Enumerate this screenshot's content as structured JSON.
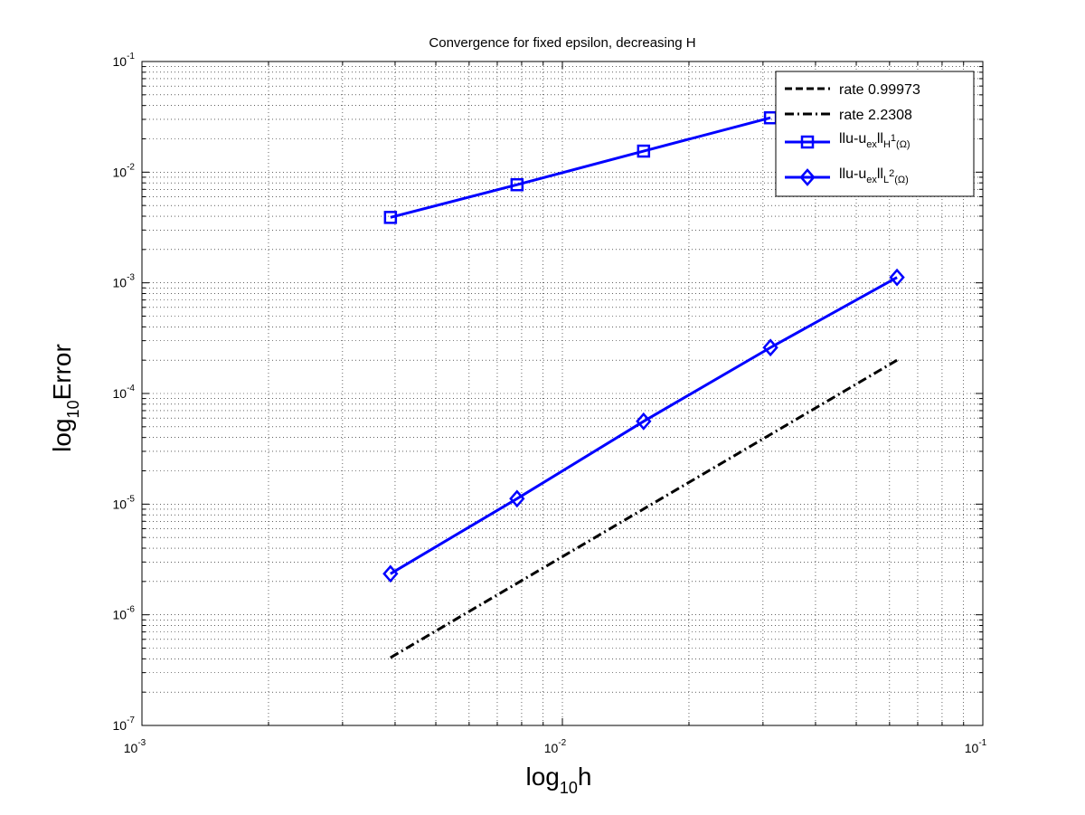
{
  "chart_data": {
    "type": "line",
    "title": "Convergence for fixed epsilon, decreasing H",
    "xlabel": {
      "base": "log",
      "sub": "10",
      "var": "h"
    },
    "ylabel": {
      "base": "log",
      "sub": "10",
      "var": "Error"
    },
    "xscale": "log",
    "yscale": "log",
    "xlim": [
      0.001,
      0.1
    ],
    "ylim": [
      1e-07,
      0.1
    ],
    "grid": true,
    "x_ticks": [
      {
        "value": 0.001,
        "base": "10",
        "exp": "-3"
      },
      {
        "value": 0.01,
        "base": "10",
        "exp": "-2"
      },
      {
        "value": 0.1,
        "base": "10",
        "exp": "-1"
      }
    ],
    "y_ticks": [
      {
        "value": 1e-07,
        "base": "10",
        "exp": "-7"
      },
      {
        "value": 1e-06,
        "base": "10",
        "exp": "-6"
      },
      {
        "value": 1e-05,
        "base": "10",
        "exp": "-5"
      },
      {
        "value": 0.0001,
        "base": "10",
        "exp": "-4"
      },
      {
        "value": 0.001,
        "base": "10",
        "exp": "-3"
      },
      {
        "value": 0.01,
        "base": "10",
        "exp": "-2"
      },
      {
        "value": 0.1,
        "base": "10",
        "exp": "-1"
      }
    ],
    "legend_position": "top-right",
    "series": [
      {
        "label": "rate 0.99973",
        "style": "dashed",
        "color": "#000000",
        "marker": "none",
        "x": [],
        "y": []
      },
      {
        "label": "rate 2.2308",
        "style": "dashdot",
        "color": "#000000",
        "marker": "none",
        "x": [
          0.0039,
          0.0625
        ],
        "y": [
          4.1e-07,
          0.0002
        ]
      },
      {
        "label_parts": {
          "main": "llu-u",
          "sub1": "ex",
          "mid": "ll",
          "sub2": "H",
          "sup2": "1",
          "tail": "(Ω)"
        },
        "style": "solid",
        "color": "#0000ff",
        "marker": "square",
        "x": [
          0.0039,
          0.0078,
          0.0156,
          0.03125
        ],
        "y": [
          0.0039,
          0.0077,
          0.0155,
          0.031
        ]
      },
      {
        "label_parts": {
          "main": "llu-u",
          "sub1": "ex",
          "mid": "ll",
          "sub2": "L",
          "sup2": "2",
          "tail": "(Ω)"
        },
        "style": "solid",
        "color": "#0000ff",
        "marker": "diamond",
        "x": [
          0.0039,
          0.0078,
          0.0156,
          0.03125,
          0.0625
        ],
        "y": [
          2.35e-06,
          1.12e-05,
          5.6e-05,
          0.00026,
          0.00112
        ]
      }
    ]
  }
}
